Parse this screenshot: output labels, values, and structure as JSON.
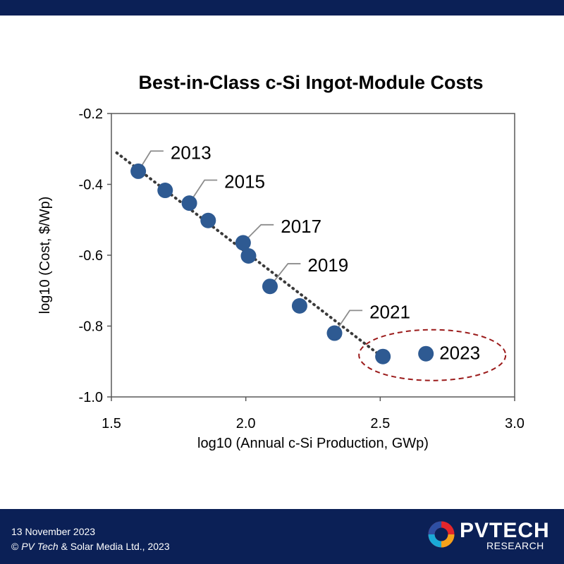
{
  "colors": {
    "header_bar": "#0b2056",
    "footer_bar": "#0b2056",
    "marker": "#2e5a92",
    "trendline": "#3a3a3a",
    "highlight_ellipse": "#9b1b1b",
    "axis": "#595959",
    "logo_ring": [
      "#e3262b",
      "#f5a21b",
      "#1aa9d6",
      "#2e4fa3"
    ]
  },
  "footer": {
    "date": "13 November  2023",
    "copyright_symbol": "©",
    "copyright_brand": "PV Tech",
    "copyright_rest": " & Solar Media Ltd., 2023"
  },
  "logo": {
    "icon": "pv-tech-ring-icon",
    "name_p": "P",
    "name_rest": "VTECH",
    "subtitle": "RESEARCH"
  },
  "chart_data": {
    "type": "scatter",
    "title": "Best-in-Class c-Si Ingot-Module Costs",
    "xlabel": "log10 (Annual c-Si Production, GWp)",
    "ylabel": "log10 (Cost, $/Wp)",
    "xlim": [
      1.5,
      3.0
    ],
    "ylim": [
      -1.0,
      -0.2
    ],
    "xticks": [
      "1.5",
      "2.0",
      "2.5",
      "3.0"
    ],
    "yticks": [
      "-0.2",
      "-0.4",
      "-0.6",
      "-0.8",
      "-1.0"
    ],
    "x_tick_values": [
      1.5,
      2.0,
      2.5,
      3.0
    ],
    "y_tick_values": [
      -0.2,
      -0.4,
      -0.6,
      -0.8,
      -1.0
    ],
    "grid": false,
    "points": [
      {
        "x": 1.6,
        "y": -0.363
      },
      {
        "x": 1.7,
        "y": -0.417
      },
      {
        "x": 1.79,
        "y": -0.453
      },
      {
        "x": 1.86,
        "y": -0.502
      },
      {
        "x": 1.99,
        "y": -0.565
      },
      {
        "x": 2.01,
        "y": -0.602
      },
      {
        "x": 2.09,
        "y": -0.688
      },
      {
        "x": 2.2,
        "y": -0.743
      },
      {
        "x": 2.33,
        "y": -0.82
      },
      {
        "x": 2.51,
        "y": -0.886
      },
      {
        "x": 2.67,
        "y": -0.878
      }
    ],
    "trendline": {
      "style": "dotted",
      "from": {
        "x": 1.52,
        "y": -0.311
      },
      "to": {
        "x": 2.5,
        "y": -0.883
      }
    },
    "annotations": [
      {
        "text": "2013",
        "point": {
          "x": 1.6,
          "y": -0.363
        },
        "label_at": {
          "x": 1.72,
          "y": -0.31
        }
      },
      {
        "text": "2015",
        "point": {
          "x": 1.79,
          "y": -0.453
        },
        "label_at": {
          "x": 1.92,
          "y": -0.392
        }
      },
      {
        "text": "2017",
        "point": {
          "x": 1.99,
          "y": -0.565
        },
        "label_at": {
          "x": 2.13,
          "y": -0.518
        }
      },
      {
        "text": "2019",
        "point": {
          "x": 2.09,
          "y": -0.688
        },
        "label_at": {
          "x": 2.23,
          "y": -0.628
        }
      },
      {
        "text": "2021",
        "point": {
          "x": 2.33,
          "y": -0.82
        },
        "label_at": {
          "x": 2.46,
          "y": -0.76
        }
      },
      {
        "text": "2023",
        "point": {
          "x": 2.67,
          "y": -0.878
        },
        "label_at": {
          "x": 2.72,
          "y": -0.876
        },
        "no_leader": true
      }
    ],
    "highlight": {
      "shape": "dashed-ellipse",
      "around": [
        "2023"
      ]
    }
  }
}
